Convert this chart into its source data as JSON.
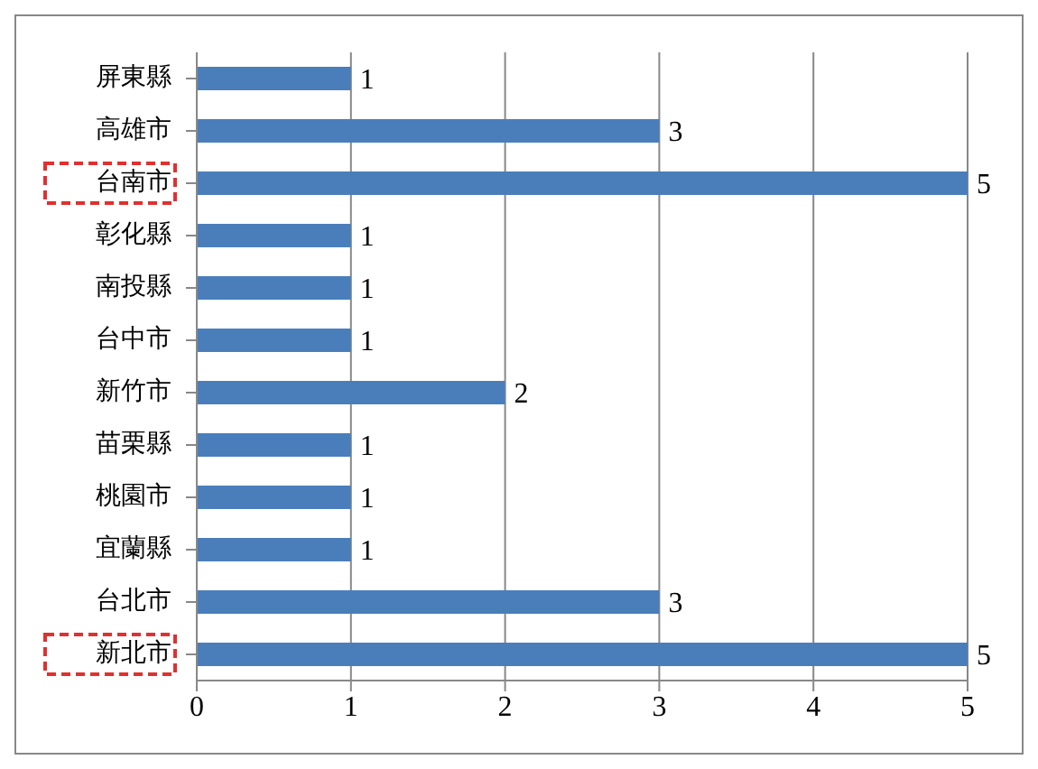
{
  "chart_data": {
    "type": "bar",
    "orientation": "horizontal",
    "categories": [
      "屏東縣",
      "高雄市",
      "台南市",
      "彰化縣",
      "南投縣",
      "台中市",
      "新竹市",
      "苗栗縣",
      "桃園市",
      "宜蘭縣",
      "台北市",
      "新北市"
    ],
    "values": [
      1,
      3,
      5,
      1,
      1,
      1,
      2,
      1,
      1,
      1,
      3,
      5
    ],
    "color": "#4a7ebb",
    "xlim": [
      0,
      5
    ],
    "xticks": [
      0,
      1,
      2,
      3,
      4,
      5
    ],
    "grid": "x",
    "data_labels": true
  }
}
